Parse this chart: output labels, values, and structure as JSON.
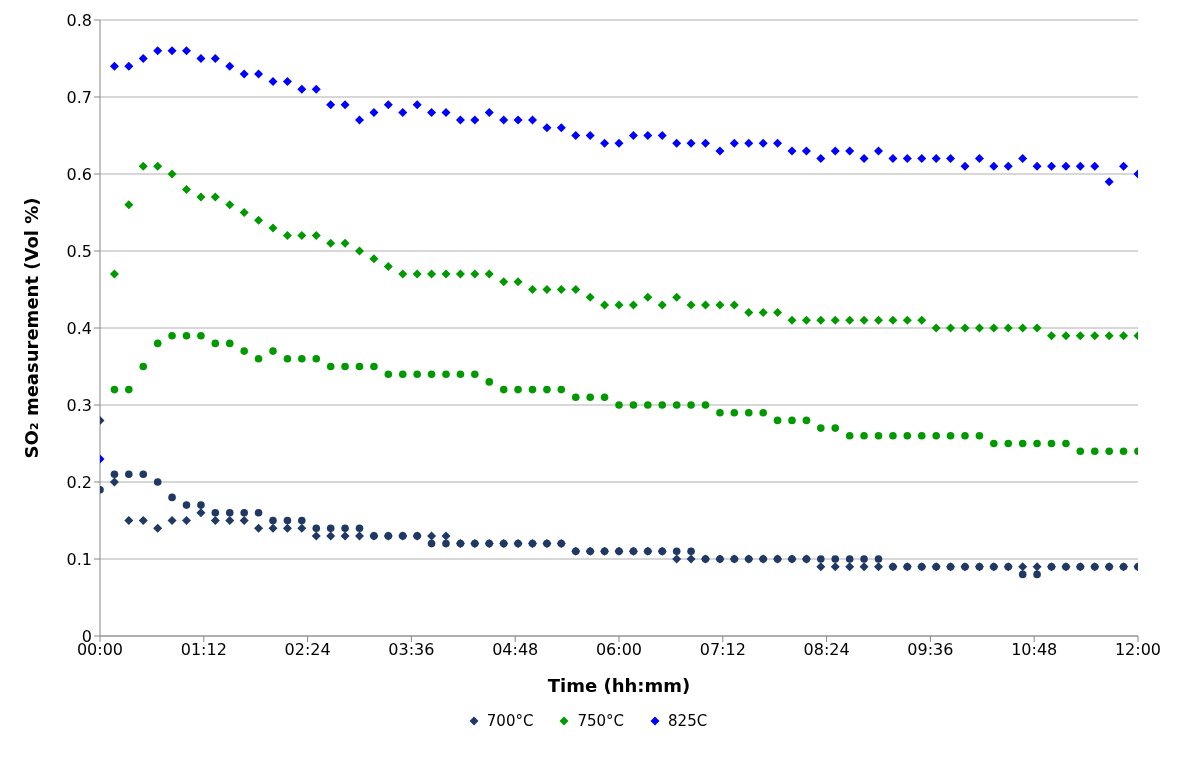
{
  "chart_data": {
    "type": "scatter",
    "xlabel": "Time (hh:mm)",
    "ylabel": "SO₂ measurement (Vol %)",
    "x": [
      0,
      0.167,
      0.333,
      0.5,
      0.667,
      0.833,
      1,
      1.167,
      1.333,
      1.5,
      1.667,
      1.833,
      2,
      2.167,
      2.333,
      2.5,
      2.667,
      2.833,
      3,
      3.167,
      3.333,
      3.5,
      3.667,
      3.833,
      4,
      4.167,
      4.333,
      4.5,
      4.667,
      4.833,
      5,
      5.167,
      5.333,
      5.5,
      5.667,
      5.833,
      6,
      6.167,
      6.333,
      6.5,
      6.667,
      6.833,
      7,
      7.167,
      7.333,
      7.5,
      7.667,
      7.833,
      8,
      8.167,
      8.333,
      8.5,
      8.667,
      8.833,
      9,
      9.167,
      9.333,
      9.5,
      9.667,
      9.833,
      10,
      10.167,
      10.333,
      10.5,
      10.667,
      10.833,
      11,
      11.167,
      11.333,
      11.5,
      11.667,
      11.833,
      12
    ],
    "series": [
      {
        "name": "700°C",
        "color": "#203864",
        "marker": "diamond",
        "values": [
          0.28,
          0.2,
          0.15,
          0.15,
          0.14,
          0.15,
          0.15,
          0.16,
          0.15,
          0.15,
          0.15,
          0.14,
          0.14,
          0.14,
          0.14,
          0.13,
          0.13,
          0.13,
          0.13,
          0.13,
          0.13,
          0.13,
          0.13,
          0.13,
          0.13,
          0.12,
          0.12,
          0.12,
          0.12,
          0.12,
          0.12,
          0.12,
          0.12,
          0.11,
          0.11,
          0.11,
          0.11,
          0.11,
          0.11,
          0.11,
          0.1,
          0.1,
          0.1,
          0.1,
          0.1,
          0.1,
          0.1,
          0.1,
          0.1,
          0.1,
          0.09,
          0.09,
          0.09,
          0.09,
          0.09,
          0.09,
          0.09,
          0.09,
          0.09,
          0.09,
          0.09,
          0.09,
          0.09,
          0.09,
          0.09,
          0.09,
          0.09,
          0.09,
          0.09,
          0.09,
          0.09,
          0.09,
          0.09
        ]
      },
      {
        "color": "#203864",
        "marker": "circle",
        "values": [
          0.19,
          0.21,
          0.21,
          0.21,
          0.2,
          0.18,
          0.17,
          0.17,
          0.16,
          0.16,
          0.16,
          0.16,
          0.15,
          0.15,
          0.15,
          0.14,
          0.14,
          0.14,
          0.14,
          0.13,
          0.13,
          0.13,
          0.13,
          0.12,
          0.12,
          0.12,
          0.12,
          0.12,
          0.12,
          0.12,
          0.12,
          0.12,
          0.12,
          0.11,
          0.11,
          0.11,
          0.11,
          0.11,
          0.11,
          0.11,
          0.11,
          0.11,
          0.1,
          0.1,
          0.1,
          0.1,
          0.1,
          0.1,
          0.1,
          0.1,
          0.1,
          0.1,
          0.1,
          0.1,
          0.1,
          0.09,
          0.09,
          0.09,
          0.09,
          0.09,
          0.09,
          0.09,
          0.09,
          0.09,
          0.08,
          0.08,
          0.09,
          0.09,
          0.09,
          0.09,
          0.09,
          0.09,
          0.09
        ]
      },
      {
        "name": "750°C",
        "color": "#009900",
        "marker": "diamond",
        "values": [
          null,
          0.47,
          0.56,
          0.61,
          0.61,
          0.6,
          0.58,
          0.57,
          0.57,
          0.56,
          0.55,
          0.54,
          0.53,
          0.52,
          0.52,
          0.52,
          0.51,
          0.51,
          0.5,
          0.49,
          0.48,
          0.47,
          0.47,
          0.47,
          0.47,
          0.47,
          0.47,
          0.47,
          0.46,
          0.46,
          0.45,
          0.45,
          0.45,
          0.45,
          0.44,
          0.43,
          0.43,
          0.43,
          0.44,
          0.43,
          0.44,
          0.43,
          0.43,
          0.43,
          0.43,
          0.42,
          0.42,
          0.42,
          0.41,
          0.41,
          0.41,
          0.41,
          0.41,
          0.41,
          0.41,
          0.41,
          0.41,
          0.41,
          0.4,
          0.4,
          0.4,
          0.4,
          0.4,
          0.4,
          0.4,
          0.4,
          0.39,
          0.39,
          0.39,
          0.39,
          0.39,
          0.39,
          0.39
        ]
      },
      {
        "color": "#009900",
        "marker": "circle",
        "values": [
          null,
          0.32,
          0.32,
          0.35,
          0.38,
          0.39,
          0.39,
          0.39,
          0.38,
          0.38,
          0.37,
          0.36,
          0.37,
          0.36,
          0.36,
          0.36,
          0.35,
          0.35,
          0.35,
          0.35,
          0.34,
          0.34,
          0.34,
          0.34,
          0.34,
          0.34,
          0.34,
          0.33,
          0.32,
          0.32,
          0.32,
          0.32,
          0.32,
          0.31,
          0.31,
          0.31,
          0.3,
          0.3,
          0.3,
          0.3,
          0.3,
          0.3,
          0.3,
          0.29,
          0.29,
          0.29,
          0.29,
          0.28,
          0.28,
          0.28,
          0.27,
          0.27,
          0.26,
          0.26,
          0.26,
          0.26,
          0.26,
          0.26,
          0.26,
          0.26,
          0.26,
          0.26,
          0.25,
          0.25,
          0.25,
          0.25,
          0.25,
          0.25,
          0.24,
          0.24,
          0.24,
          0.24,
          0.24
        ]
      },
      {
        "name": "825C",
        "color": "#0000ff",
        "marker": "diamond",
        "values": [
          0.23,
          0.74,
          0.74,
          0.75,
          0.76,
          0.76,
          0.76,
          0.75,
          0.75,
          0.74,
          0.73,
          0.73,
          0.72,
          0.72,
          0.71,
          0.71,
          0.69,
          0.69,
          0.67,
          0.68,
          0.69,
          0.68,
          0.69,
          0.68,
          0.68,
          0.67,
          0.67,
          0.68,
          0.67,
          0.67,
          0.67,
          0.66,
          0.66,
          0.65,
          0.65,
          0.64,
          0.64,
          0.65,
          0.65,
          0.65,
          0.64,
          0.64,
          0.64,
          0.63,
          0.64,
          0.64,
          0.64,
          0.64,
          0.63,
          0.63,
          0.62,
          0.63,
          0.63,
          0.62,
          0.63,
          0.62,
          0.62,
          0.62,
          0.62,
          0.62,
          0.61,
          0.62,
          0.61,
          0.61,
          0.62,
          0.61,
          0.61,
          0.61,
          0.61,
          0.61,
          0.59,
          0.61,
          0.6
        ]
      }
    ],
    "xlim": [
      0,
      12
    ],
    "xticks": [
      {
        "value": 0,
        "label": "00:00"
      },
      {
        "value": 1.2,
        "label": "01:12"
      },
      {
        "value": 2.4,
        "label": "02:24"
      },
      {
        "value": 3.6,
        "label": "03:36"
      },
      {
        "value": 4.8,
        "label": "04:48"
      },
      {
        "value": 6,
        "label": "06:00"
      },
      {
        "value": 7.2,
        "label": "07:12"
      },
      {
        "value": 8.4,
        "label": "08:24"
      },
      {
        "value": 9.6,
        "label": "09:36"
      },
      {
        "value": 10.8,
        "label": "10:48"
      },
      {
        "value": 12,
        "label": "12:00"
      }
    ],
    "ylim": [
      0,
      0.8
    ],
    "yticks": [
      0,
      0.1,
      0.2,
      0.3,
      0.4,
      0.5,
      0.6,
      0.7,
      0.8
    ],
    "grid": "y",
    "legend": "bottom"
  }
}
